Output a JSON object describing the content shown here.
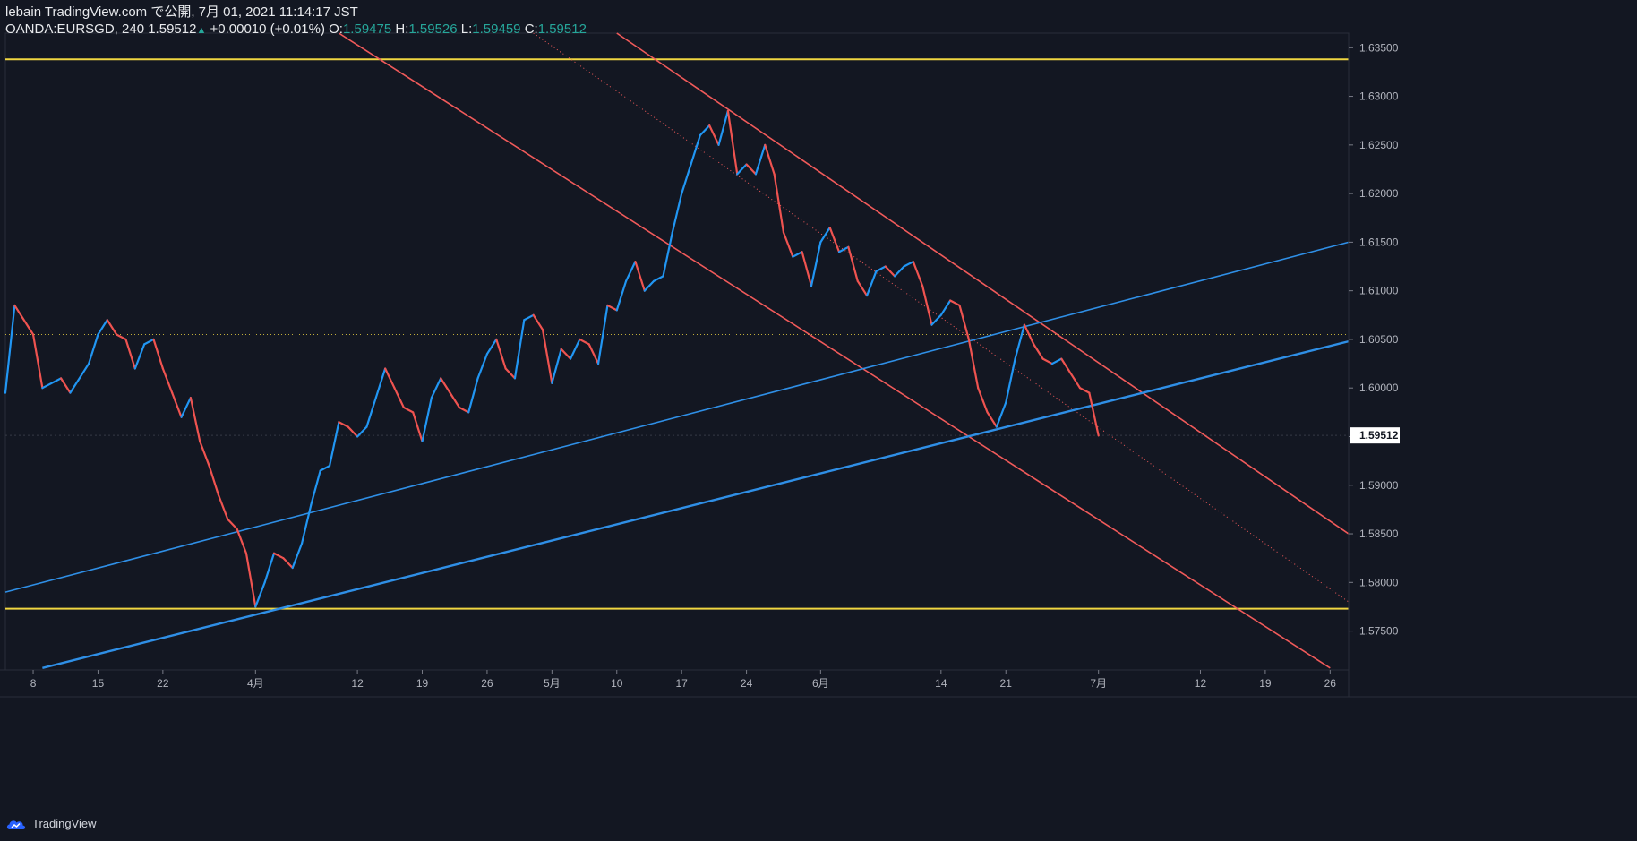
{
  "header": {
    "published": "lebain TradingView.com で公開, 7月 01, 2021 11:14:17 JST",
    "symbol": "OANDA:EURSGD, 240",
    "last": "1.59512",
    "change": "+0.00010 (+0.01%)",
    "o_label": "O:",
    "o_value": "1.59475",
    "h_label": "H:",
    "h_value": "1.59526",
    "l_label": "L:",
    "l_value": "1.59459",
    "c_label": "C:",
    "c_value": "1.59512"
  },
  "footer": {
    "brand": "TradingView"
  },
  "colors": {
    "background": "#131722",
    "up": "#2196f3",
    "down": "#ef5350",
    "support": "#f0d641",
    "channel_red": "#f05a5a",
    "channel_blue": "#2f8fe6"
  },
  "chart_data": {
    "type": "line",
    "ylim": [
      1.571,
      1.6365
    ],
    "price_ticks": [
      "1.63500",
      "1.63000",
      "1.62500",
      "1.62000",
      "1.61500",
      "1.61000",
      "1.60500",
      "1.60000",
      "1.59500",
      "1.59000",
      "1.58500",
      "1.58000",
      "1.57500"
    ],
    "price_tick_values": [
      1.635,
      1.63,
      1.625,
      1.62,
      1.615,
      1.61,
      1.605,
      1.6,
      1.595,
      1.59,
      1.585,
      1.58,
      1.575
    ],
    "last_price_label": "1.59512",
    "last_price": 1.59512,
    "x_range": [
      "2021-03-05",
      "2021-07-28"
    ],
    "time_ticks": [
      {
        "label": "8",
        "date": "2021-03-08"
      },
      {
        "label": "15",
        "date": "2021-03-15"
      },
      {
        "label": "22",
        "date": "2021-03-22"
      },
      {
        "label": "4月",
        "date": "2021-04-01"
      },
      {
        "label": "12",
        "date": "2021-04-12"
      },
      {
        "label": "19",
        "date": "2021-04-19"
      },
      {
        "label": "26",
        "date": "2021-04-26"
      },
      {
        "label": "5月",
        "date": "2021-05-03"
      },
      {
        "label": "10",
        "date": "2021-05-10"
      },
      {
        "label": "17",
        "date": "2021-05-17"
      },
      {
        "label": "24",
        "date": "2021-05-24"
      },
      {
        "label": "6月",
        "date": "2021-06-01"
      },
      {
        "label": "14",
        "date": "2021-06-14"
      },
      {
        "label": "21",
        "date": "2021-06-21"
      },
      {
        "label": "7月",
        "date": "2021-07-01"
      },
      {
        "label": "12",
        "date": "2021-07-12"
      },
      {
        "label": "19",
        "date": "2021-07-19"
      },
      {
        "label": "26",
        "date": "2021-07-26"
      }
    ],
    "price_path": [
      [
        "2021-03-05",
        1.5995
      ],
      [
        "2021-03-06",
        1.6085
      ],
      [
        "2021-03-08",
        1.6055
      ],
      [
        "2021-03-09",
        1.6
      ],
      [
        "2021-03-11",
        1.601
      ],
      [
        "2021-03-12",
        1.5995
      ],
      [
        "2021-03-14",
        1.6025
      ],
      [
        "2021-03-15",
        1.6055
      ],
      [
        "2021-03-16",
        1.607
      ],
      [
        "2021-03-17",
        1.6055
      ],
      [
        "2021-03-18",
        1.605
      ],
      [
        "2021-03-19",
        1.602
      ],
      [
        "2021-03-20",
        1.6045
      ],
      [
        "2021-03-21",
        1.605
      ],
      [
        "2021-03-22",
        1.602
      ],
      [
        "2021-03-23",
        1.5995
      ],
      [
        "2021-03-24",
        1.597
      ],
      [
        "2021-03-25",
        1.599
      ],
      [
        "2021-03-26",
        1.5945
      ],
      [
        "2021-03-27",
        1.592
      ],
      [
        "2021-03-28",
        1.589
      ],
      [
        "2021-03-29",
        1.5865
      ],
      [
        "2021-03-30",
        1.5855
      ],
      [
        "2021-03-31",
        1.583
      ],
      [
        "2021-04-01",
        1.5775
      ],
      [
        "2021-04-02",
        1.58
      ],
      [
        "2021-04-03",
        1.583
      ],
      [
        "2021-04-04",
        1.5825
      ],
      [
        "2021-04-05",
        1.5815
      ],
      [
        "2021-04-06",
        1.584
      ],
      [
        "2021-04-07",
        1.588
      ],
      [
        "2021-04-08",
        1.5915
      ],
      [
        "2021-04-09",
        1.592
      ],
      [
        "2021-04-10",
        1.5965
      ],
      [
        "2021-04-11",
        1.596
      ],
      [
        "2021-04-12",
        1.595
      ],
      [
        "2021-04-13",
        1.596
      ],
      [
        "2021-04-14",
        1.599
      ],
      [
        "2021-04-15",
        1.602
      ],
      [
        "2021-04-16",
        1.6
      ],
      [
        "2021-04-17",
        1.598
      ],
      [
        "2021-04-18",
        1.5975
      ],
      [
        "2021-04-19",
        1.5945
      ],
      [
        "2021-04-20",
        1.599
      ],
      [
        "2021-04-21",
        1.601
      ],
      [
        "2021-04-22",
        1.5995
      ],
      [
        "2021-04-23",
        1.598
      ],
      [
        "2021-04-24",
        1.5975
      ],
      [
        "2021-04-25",
        1.601
      ],
      [
        "2021-04-26",
        1.6035
      ],
      [
        "2021-04-27",
        1.605
      ],
      [
        "2021-04-28",
        1.602
      ],
      [
        "2021-04-29",
        1.601
      ],
      [
        "2021-04-30",
        1.607
      ],
      [
        "2021-05-01",
        1.6075
      ],
      [
        "2021-05-02",
        1.606
      ],
      [
        "2021-05-03",
        1.6005
      ],
      [
        "2021-05-04",
        1.604
      ],
      [
        "2021-05-05",
        1.603
      ],
      [
        "2021-05-06",
        1.605
      ],
      [
        "2021-05-07",
        1.6045
      ],
      [
        "2021-05-08",
        1.6025
      ],
      [
        "2021-05-09",
        1.6085
      ],
      [
        "2021-05-10",
        1.608
      ],
      [
        "2021-05-11",
        1.611
      ],
      [
        "2021-05-12",
        1.613
      ],
      [
        "2021-05-13",
        1.61
      ],
      [
        "2021-05-14",
        1.611
      ],
      [
        "2021-05-15",
        1.6115
      ],
      [
        "2021-05-16",
        1.616
      ],
      [
        "2021-05-17",
        1.62
      ],
      [
        "2021-05-18",
        1.623
      ],
      [
        "2021-05-19",
        1.626
      ],
      [
        "2021-05-20",
        1.627
      ],
      [
        "2021-05-21",
        1.625
      ],
      [
        "2021-05-22",
        1.6285
      ],
      [
        "2021-05-23",
        1.622
      ],
      [
        "2021-05-24",
        1.623
      ],
      [
        "2021-05-25",
        1.622
      ],
      [
        "2021-05-26",
        1.625
      ],
      [
        "2021-05-27",
        1.622
      ],
      [
        "2021-05-28",
        1.616
      ],
      [
        "2021-05-29",
        1.6135
      ],
      [
        "2021-05-30",
        1.614
      ],
      [
        "2021-05-31",
        1.6105
      ],
      [
        "2021-06-01",
        1.615
      ],
      [
        "2021-06-02",
        1.6165
      ],
      [
        "2021-06-03",
        1.614
      ],
      [
        "2021-06-04",
        1.6145
      ],
      [
        "2021-06-05",
        1.611
      ],
      [
        "2021-06-06",
        1.6095
      ],
      [
        "2021-06-07",
        1.612
      ],
      [
        "2021-06-08",
        1.6125
      ],
      [
        "2021-06-09",
        1.6115
      ],
      [
        "2021-06-10",
        1.6125
      ],
      [
        "2021-06-11",
        1.613
      ],
      [
        "2021-06-12",
        1.6105
      ],
      [
        "2021-06-13",
        1.6065
      ],
      [
        "2021-06-14",
        1.6075
      ],
      [
        "2021-06-15",
        1.609
      ],
      [
        "2021-06-16",
        1.6085
      ],
      [
        "2021-06-17",
        1.605
      ],
      [
        "2021-06-18",
        1.6
      ],
      [
        "2021-06-19",
        1.5975
      ],
      [
        "2021-06-20",
        1.596
      ],
      [
        "2021-06-21",
        1.5985
      ],
      [
        "2021-06-22",
        1.603
      ],
      [
        "2021-06-23",
        1.6065
      ],
      [
        "2021-06-24",
        1.6045
      ],
      [
        "2021-06-25",
        1.603
      ],
      [
        "2021-06-26",
        1.6025
      ],
      [
        "2021-06-27",
        1.603
      ],
      [
        "2021-06-28",
        1.6015
      ],
      [
        "2021-06-29",
        1.6
      ],
      [
        "2021-06-30",
        1.5995
      ],
      [
        "2021-07-01",
        1.5951
      ]
    ],
    "horizontal_lines": [
      {
        "name": "resistance",
        "price": 1.6338
      },
      {
        "name": "support",
        "price": 1.5773
      },
      {
        "name": "dotted-level",
        "price": 1.6055
      }
    ],
    "trend_lines": [
      {
        "name": "red-channel-upper",
        "color": "red",
        "points": [
          [
            "2021-05-10",
            1.6365
          ],
          [
            "2021-07-28",
            1.585
          ]
        ]
      },
      {
        "name": "red-channel-lower",
        "color": "red",
        "points": [
          [
            "2021-04-10",
            1.6365
          ],
          [
            "2021-07-26",
            1.5712
          ]
        ]
      },
      {
        "name": "red-channel-mid",
        "color": "red-dotted",
        "points": [
          [
            "2021-05-01",
            1.6365
          ],
          [
            "2021-07-28",
            1.578
          ]
        ]
      },
      {
        "name": "blue-channel-upper",
        "color": "blue",
        "points": [
          [
            "2021-03-05",
            1.579
          ],
          [
            "2021-07-28",
            1.615
          ]
        ]
      },
      {
        "name": "blue-channel-lower",
        "color": "blue",
        "points": [
          [
            "2021-03-09",
            1.5712
          ],
          [
            "2021-07-28",
            1.6048
          ]
        ]
      }
    ]
  }
}
